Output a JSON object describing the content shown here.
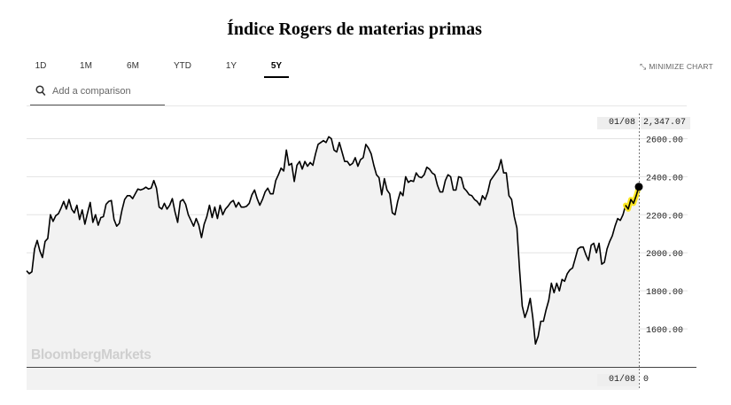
{
  "title": "Índice Rogers de materias primas",
  "tabs": [
    {
      "label": "1D",
      "active": false
    },
    {
      "label": "1M",
      "active": false
    },
    {
      "label": "6M",
      "active": false
    },
    {
      "label": "YTD",
      "active": false
    },
    {
      "label": "1Y",
      "active": false
    },
    {
      "label": "5Y",
      "active": true
    }
  ],
  "minimize_label": "MINIMIZE CHART",
  "minimize_icon": "minimize-arrows-icon",
  "comparison": {
    "placeholder": "Add a comparison",
    "icon": "search-icon"
  },
  "watermark": "BloombergMarkets",
  "crosshair": {
    "date": "01/08",
    "value": "2,347.07",
    "volume_date": "01/08",
    "volume_value": "0"
  },
  "colors": {
    "line": "#000000",
    "highlight": "#ffe600",
    "fill": "#f2f2f2",
    "grid": "#e3e3e3",
    "marker": "#000000"
  },
  "chart_data": {
    "type": "line",
    "title": "Índice Rogers de materias primas",
    "ylim": [
      1400,
      2700
    ],
    "yticks": [
      "1600.00",
      "1800.00",
      "2000.00",
      "2200.00",
      "2400.00",
      "2600.00"
    ],
    "grid": true,
    "series": [
      {
        "values": [
          1905,
          1890,
          1900,
          2020,
          2065,
          2010,
          1975,
          2060,
          2075,
          2200,
          2165,
          2195,
          2205,
          2235,
          2270,
          2230,
          2280,
          2230,
          2210,
          2250,
          2175,
          2225,
          2150,
          2210,
          2265,
          2160,
          2200,
          2145,
          2185,
          2190,
          2255,
          2270,
          2275,
          2175,
          2140,
          2155,
          2225,
          2280,
          2300,
          2300,
          2285,
          2310,
          2335,
          2330,
          2335,
          2345,
          2335,
          2340,
          2380,
          2340,
          2240,
          2230,
          2260,
          2230,
          2250,
          2285,
          2215,
          2160,
          2270,
          2280,
          2255,
          2200,
          2170,
          2140,
          2180,
          2145,
          2080,
          2150,
          2190,
          2250,
          2185,
          2240,
          2180,
          2250,
          2200,
          2230,
          2245,
          2265,
          2275,
          2240,
          2265,
          2240,
          2240,
          2245,
          2260,
          2305,
          2330,
          2285,
          2250,
          2280,
          2320,
          2340,
          2310,
          2310,
          2380,
          2410,
          2445,
          2430,
          2540,
          2460,
          2470,
          2375,
          2460,
          2480,
          2440,
          2480,
          2455,
          2475,
          2460,
          2520,
          2570,
          2580,
          2590,
          2580,
          2610,
          2600,
          2540,
          2530,
          2580,
          2530,
          2480,
          2480,
          2460,
          2470,
          2500,
          2455,
          2490,
          2500,
          2570,
          2550,
          2520,
          2460,
          2410,
          2395,
          2305,
          2390,
          2330,
          2310,
          2210,
          2200,
          2270,
          2320,
          2300,
          2400,
          2370,
          2380,
          2375,
          2420,
          2400,
          2395,
          2410,
          2450,
          2440,
          2420,
          2410,
          2355,
          2320,
          2320,
          2380,
          2410,
          2400,
          2330,
          2330,
          2400,
          2395,
          2340,
          2325,
          2305,
          2300,
          2280,
          2270,
          2250,
          2300,
          2280,
          2320,
          2380,
          2400,
          2420,
          2440,
          2490,
          2420,
          2420,
          2300,
          2280,
          2190,
          2130,
          1910,
          1720,
          1660,
          1700,
          1760,
          1660,
          1520,
          1560,
          1640,
          1640,
          1700,
          1750,
          1840,
          1790,
          1840,
          1800,
          1860,
          1850,
          1890,
          1910,
          1920,
          1970,
          2020,
          2030,
          2030,
          1990,
          1960,
          2040,
          2050,
          2000,
          2050,
          1940,
          1950,
          2020,
          2060,
          2090,
          2140,
          2180,
          2170,
          2200,
          2250,
          2230,
          2280,
          2260,
          2300,
          2347
        ]
      }
    ]
  }
}
